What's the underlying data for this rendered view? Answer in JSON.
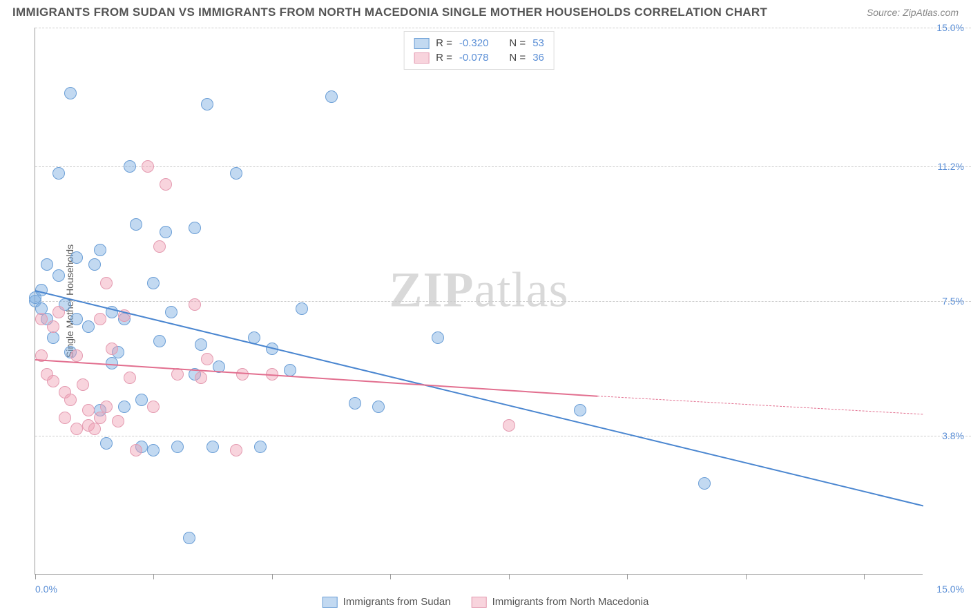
{
  "title": "IMMIGRANTS FROM SUDAN VS IMMIGRANTS FROM NORTH MACEDONIA SINGLE MOTHER HOUSEHOLDS CORRELATION CHART",
  "source": "Source: ZipAtlas.com",
  "watermark_bold": "ZIP",
  "watermark_light": "atlas",
  "y_axis_title": "Single Mother Households",
  "x_min_label": "0.0%",
  "x_max_label": "15.0%",
  "chart": {
    "type": "scatter",
    "xlim": [
      0,
      15
    ],
    "ylim": [
      0,
      15
    ],
    "y_ticks": [
      3.8,
      7.5,
      11.2,
      15.0
    ],
    "y_tick_labels": [
      "3.8%",
      "7.5%",
      "11.2%",
      "15.0%"
    ],
    "x_ticks": [
      0,
      2,
      4,
      6,
      8,
      10,
      12,
      14
    ],
    "background_color": "#ffffff",
    "grid_color": "#cccccc",
    "point_radius": 9,
    "series": [
      {
        "name": "Immigrants from Sudan",
        "fill_color": "rgba(120,170,225,0.45)",
        "stroke_color": "#6a9ed6",
        "trend_color": "#4a86d0",
        "trend_start": [
          0,
          7.8
        ],
        "trend_end": [
          15,
          1.9
        ],
        "R": "-0.320",
        "N": "53",
        "points": [
          [
            0.0,
            7.5
          ],
          [
            0.0,
            7.6
          ],
          [
            0.1,
            7.3
          ],
          [
            0.1,
            7.8
          ],
          [
            0.2,
            7.0
          ],
          [
            0.2,
            8.5
          ],
          [
            0.4,
            11.0
          ],
          [
            0.4,
            8.2
          ],
          [
            0.6,
            13.2
          ],
          [
            0.7,
            8.7
          ],
          [
            0.7,
            7.0
          ],
          [
            0.9,
            6.8
          ],
          [
            1.0,
            8.5
          ],
          [
            1.1,
            8.9
          ],
          [
            1.1,
            4.5
          ],
          [
            1.2,
            3.6
          ],
          [
            1.3,
            7.2
          ],
          [
            1.4,
            6.1
          ],
          [
            1.5,
            7.0
          ],
          [
            1.5,
            4.6
          ],
          [
            1.6,
            11.2
          ],
          [
            1.7,
            9.6
          ],
          [
            1.8,
            4.8
          ],
          [
            1.8,
            3.5
          ],
          [
            2.0,
            8.0
          ],
          [
            2.0,
            3.4
          ],
          [
            2.1,
            6.4
          ],
          [
            2.2,
            9.4
          ],
          [
            2.3,
            7.2
          ],
          [
            2.4,
            3.5
          ],
          [
            2.6,
            1.0
          ],
          [
            2.7,
            9.5
          ],
          [
            2.7,
            5.5
          ],
          [
            2.8,
            6.3
          ],
          [
            2.9,
            12.9
          ],
          [
            3.0,
            3.5
          ],
          [
            3.1,
            5.7
          ],
          [
            3.4,
            11.0
          ],
          [
            3.7,
            6.5
          ],
          [
            3.8,
            3.5
          ],
          [
            4.0,
            6.2
          ],
          [
            4.3,
            5.6
          ],
          [
            4.5,
            7.3
          ],
          [
            5.0,
            13.1
          ],
          [
            5.4,
            4.7
          ],
          [
            5.8,
            4.6
          ],
          [
            6.8,
            6.5
          ],
          [
            9.2,
            4.5
          ],
          [
            11.3,
            2.5
          ],
          [
            0.3,
            6.5
          ],
          [
            0.5,
            7.4
          ],
          [
            0.6,
            6.1
          ],
          [
            1.3,
            5.8
          ]
        ]
      },
      {
        "name": "Immigrants from North Macedonia",
        "fill_color": "rgba(240,160,180,0.45)",
        "stroke_color": "#e49ab0",
        "trend_color": "#e26f8f",
        "trend_start": [
          0,
          5.9
        ],
        "trend_end": [
          9.5,
          4.9
        ],
        "trend_dash_end": [
          15,
          4.4
        ],
        "R": "-0.078",
        "N": "36",
        "points": [
          [
            0.1,
            6.0
          ],
          [
            0.1,
            7.0
          ],
          [
            0.2,
            5.5
          ],
          [
            0.3,
            5.3
          ],
          [
            0.3,
            6.8
          ],
          [
            0.4,
            7.2
          ],
          [
            0.5,
            4.3
          ],
          [
            0.5,
            5.0
          ],
          [
            0.6,
            4.8
          ],
          [
            0.7,
            6.0
          ],
          [
            0.7,
            4.0
          ],
          [
            0.8,
            5.2
          ],
          [
            0.9,
            4.5
          ],
          [
            0.9,
            4.1
          ],
          [
            1.0,
            4.0
          ],
          [
            1.1,
            7.0
          ],
          [
            1.1,
            4.3
          ],
          [
            1.2,
            8.0
          ],
          [
            1.2,
            4.6
          ],
          [
            1.3,
            6.2
          ],
          [
            1.4,
            4.2
          ],
          [
            1.5,
            7.1
          ],
          [
            1.6,
            5.4
          ],
          [
            1.7,
            3.4
          ],
          [
            1.9,
            11.2
          ],
          [
            2.0,
            4.6
          ],
          [
            2.1,
            9.0
          ],
          [
            2.2,
            10.7
          ],
          [
            2.4,
            5.5
          ],
          [
            2.7,
            7.4
          ],
          [
            2.8,
            5.4
          ],
          [
            2.9,
            5.9
          ],
          [
            3.4,
            3.4
          ],
          [
            3.5,
            5.5
          ],
          [
            4.0,
            5.5
          ],
          [
            8.0,
            4.1
          ]
        ]
      }
    ]
  },
  "legend_top": {
    "r_label": "R =",
    "n_label": "N ="
  },
  "legend_bottom": [
    "Immigrants from Sudan",
    "Immigrants from North Macedonia"
  ]
}
